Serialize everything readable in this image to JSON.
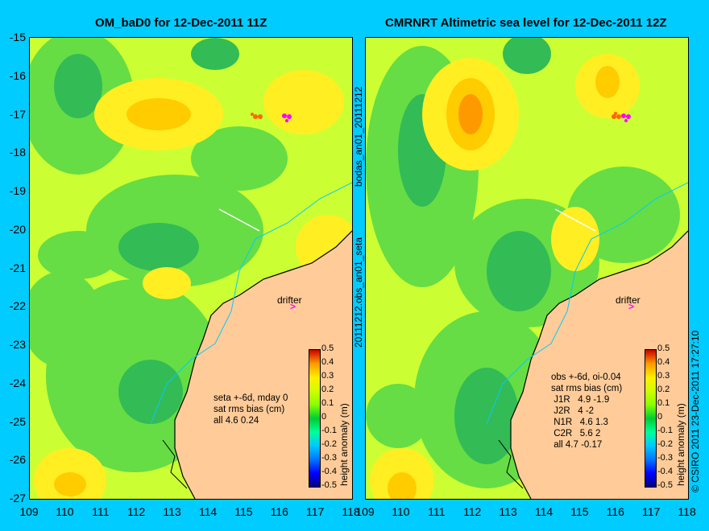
{
  "left": {
    "title": "OM_baD0 for 12-Dec-2011 11Z",
    "stats": "seta +-6d, mday 0\nsat rms bias (cm)\nall 4.6 0.24",
    "drifter": "drifter"
  },
  "right": {
    "title": "CMRNRT Altimetric sea level  for 12-Dec-2011 12Z",
    "stats": "obs +-6d, oi-0.04\nsat rms bias (cm)\n J1R   4.9 -1.9\n J2R   4 -2\n N1R   4.6 1.3\n C2R   5.6 2\n all 4.7 -0.17",
    "drifter": "drifter"
  },
  "side_text": {
    "bodas": "bodas_an01_20111212",
    "seta": "20111212.obs_an01_seta",
    "copyright": "© CSIRO 2011   23-Dec-2011 17:27:10"
  },
  "axes": {
    "y_ticks": [
      "-15",
      "-16",
      "-17",
      "-18",
      "-19",
      "-20",
      "-21",
      "-22",
      "-23",
      "-24",
      "-25",
      "-26",
      "-27"
    ],
    "x_ticks_left": [
      "109",
      "110",
      "111",
      "112",
      "113",
      "114",
      "115",
      "116",
      "117",
      "118"
    ],
    "x_ticks_right": [
      "109",
      "110",
      "111",
      "112",
      "113",
      "114",
      "115",
      "116",
      "117",
      "118"
    ]
  },
  "colorbar": {
    "label": "height anomaly (m)",
    "ticks": [
      "0.5",
      "0.4",
      "0.3",
      "0.2",
      "0.1",
      "0",
      "-0.1",
      "-0.2",
      "-0.3",
      "-0.4",
      "-0.5"
    ],
    "colors": [
      "#000080",
      "#0000ff",
      "#0077ff",
      "#00c8ff",
      "#00ff99",
      "#00cc33",
      "#88ff00",
      "#ccff00",
      "#ffee00",
      "#ff9900",
      "#cc0000"
    ]
  },
  "colors": {
    "background": "#00ccff",
    "land": "#ffcc99",
    "water_high": "#ffcc00",
    "water_mid": "#ccff33",
    "water_low": "#33cc33"
  }
}
